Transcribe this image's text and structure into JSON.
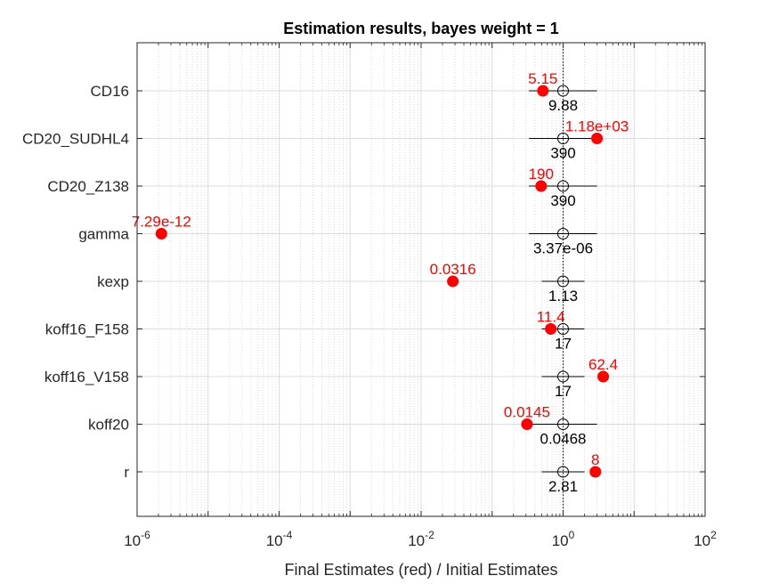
{
  "chart_data": {
    "type": "scatter",
    "title": "Estimation results, bayes weight = 1",
    "xlabel": "Final Estimates (red) / Initial Estimates",
    "ylabel": "",
    "xscale": "log",
    "xlim": [
      1e-06,
      100
    ],
    "x_ticks": [
      {
        "base": "10",
        "exp": "-6"
      },
      {
        "base": "10",
        "exp": "-4"
      },
      {
        "base": "10",
        "exp": "-2"
      },
      {
        "base": "10",
        "exp": "0"
      },
      {
        "base": "10",
        "exp": "2"
      }
    ],
    "grid": true,
    "categories": [
      "CD16",
      "CD20_SUDHL4",
      "CD20_Z138",
      "gamma",
      "kexp",
      "koff16_F158",
      "koff16_V158",
      "koff20",
      "r"
    ],
    "final_ratio": [
      0.52,
      3.0,
      0.49,
      2.2e-06,
      0.028,
      0.67,
      3.67,
      0.31,
      2.85
    ],
    "final_labels": [
      "5.15",
      "1.18e+03",
      "190",
      "7.29e-12",
      "0.0316",
      "11.4",
      "62.4",
      "0.0145",
      "8"
    ],
    "initial_ratio": [
      1,
      1,
      1,
      1,
      1,
      1,
      1,
      1,
      1
    ],
    "initial_labels": [
      "9.88",
      "390",
      "390",
      "3.37e-06",
      "1.13",
      "17",
      "17",
      "0.0468",
      "2.81"
    ],
    "interval_low": [
      0.33,
      0.33,
      0.33,
      0.33,
      0.5,
      0.5,
      0.5,
      0.33,
      0.5
    ],
    "interval_high": [
      3.0,
      3.0,
      3.0,
      3.0,
      2.0,
      2.0,
      2.0,
      3.0,
      2.0
    ],
    "colors": {
      "final": "#ff0000",
      "initial": "#000000",
      "grid": "#c8c8c8",
      "axis": "#262626"
    }
  }
}
